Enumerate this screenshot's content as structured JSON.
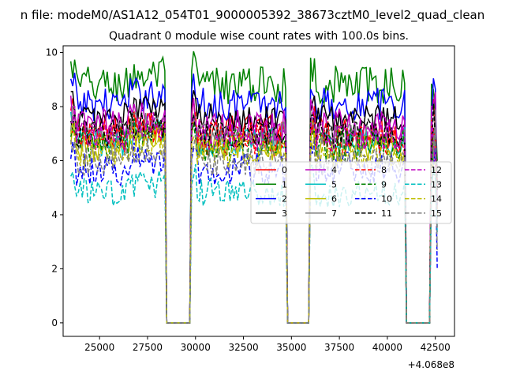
{
  "chart_data": {
    "type": "line",
    "suptitle": "n file: modeM0/AS1A12_054T01_9000005392_38673cztM0_level2_quad_clean",
    "title": "Quadrant 0 module wise count rates with 100.0s bins.",
    "xlabel": "",
    "ylabel": "",
    "x_offset_label": "+4.068e8",
    "xlim": [
      23100,
      43500
    ],
    "ylim": [
      -0.5,
      10.25
    ],
    "xticks": [
      {
        "value": 25000,
        "label": "25000"
      },
      {
        "value": 27500,
        "label": "27500"
      },
      {
        "value": 30000,
        "label": "30000"
      },
      {
        "value": 32500,
        "label": "32500"
      },
      {
        "value": 35000,
        "label": "35000"
      },
      {
        "value": 37500,
        "label": "37500"
      },
      {
        "value": 40000,
        "label": "40000"
      },
      {
        "value": 42500,
        "label": "42500"
      }
    ],
    "yticks": [
      {
        "value": 0,
        "label": "0"
      },
      {
        "value": 2,
        "label": "2"
      },
      {
        "value": 4,
        "label": "4"
      },
      {
        "value": 6,
        "label": "6"
      },
      {
        "value": 8,
        "label": "8"
      },
      {
        "value": 10,
        "label": "10"
      }
    ],
    "bin_seconds": 100,
    "good_segments": [
      [
        23500,
        28400
      ],
      [
        29800,
        34700
      ],
      [
        36000,
        40900
      ],
      [
        42300,
        42600
      ]
    ],
    "series": [
      {
        "name": "0",
        "color": "#ff0000",
        "dash": "solid",
        "level": 7.1,
        "noise": 0.35
      },
      {
        "name": "1",
        "color": "#008000",
        "dash": "solid",
        "level": 8.8,
        "noise": 0.4
      },
      {
        "name": "2",
        "color": "#0000ff",
        "dash": "solid",
        "level": 8.1,
        "noise": 0.35
      },
      {
        "name": "3",
        "color": "#000000",
        "dash": "solid",
        "level": 7.6,
        "noise": 0.3
      },
      {
        "name": "4",
        "color": "#bf00bf",
        "dash": "solid",
        "level": 7.3,
        "noise": 0.35
      },
      {
        "name": "5",
        "color": "#00bfbf",
        "dash": "solid",
        "level": 6.7,
        "noise": 0.3
      },
      {
        "name": "6",
        "color": "#bfbf00",
        "dash": "solid",
        "level": 6.5,
        "noise": 0.3
      },
      {
        "name": "7",
        "color": "#808080",
        "dash": "solid",
        "level": 6.9,
        "noise": 0.3
      },
      {
        "name": "8",
        "color": "#ff0000",
        "dash": "dashed",
        "level": 6.8,
        "noise": 0.35
      },
      {
        "name": "9",
        "color": "#008000",
        "dash": "dashed",
        "level": 6.6,
        "noise": 0.35
      },
      {
        "name": "10",
        "color": "#0000ff",
        "dash": "dashed",
        "level": 5.7,
        "noise": 0.35
      },
      {
        "name": "11",
        "color": "#000000",
        "dash": "dashed",
        "level": 7.0,
        "noise": 0.3
      },
      {
        "name": "12",
        "color": "#bf00bf",
        "dash": "dashed",
        "level": 6.9,
        "noise": 0.3
      },
      {
        "name": "13",
        "color": "#00bfbf",
        "dash": "dashed",
        "level": 4.8,
        "noise": 0.3
      },
      {
        "name": "14",
        "color": "#bfbf00",
        "dash": "dashed",
        "level": 6.3,
        "noise": 0.3
      },
      {
        "name": "15",
        "color": "#808080",
        "dash": "dashed",
        "level": 6.0,
        "noise": 0.3
      }
    ],
    "legend_loc": "center-right",
    "legend_columns": 4
  }
}
